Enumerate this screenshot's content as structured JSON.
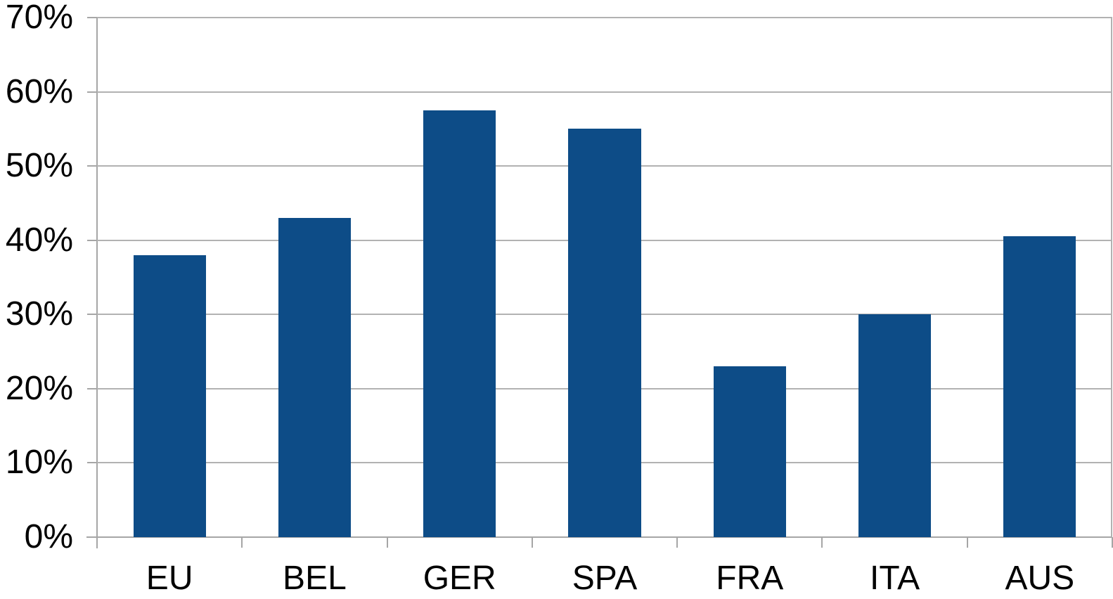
{
  "chart_data": {
    "type": "bar",
    "title": "",
    "xlabel": "",
    "ylabel": "",
    "categories": [
      "EU",
      "BEL",
      "GER",
      "SPA",
      "FRA",
      "ITA",
      "AUS"
    ],
    "values": [
      38,
      43,
      57.5,
      55,
      23,
      30,
      40.5
    ],
    "unit": "%",
    "ylim": [
      0,
      70
    ],
    "ytick_step": 10,
    "yticks": [
      0,
      10,
      20,
      30,
      40,
      50,
      60,
      70
    ],
    "ytick_labels": [
      "0%",
      "10%",
      "20%",
      "30%",
      "40%",
      "50%",
      "60%",
      "70%"
    ],
    "grid": "horizontal",
    "legend_position": "none",
    "colors": {
      "bar": "#0d4c87",
      "gridline": "#b2b2b2",
      "axis": "#a6a6a6",
      "label": "#000000",
      "background": "#ffffff"
    }
  }
}
